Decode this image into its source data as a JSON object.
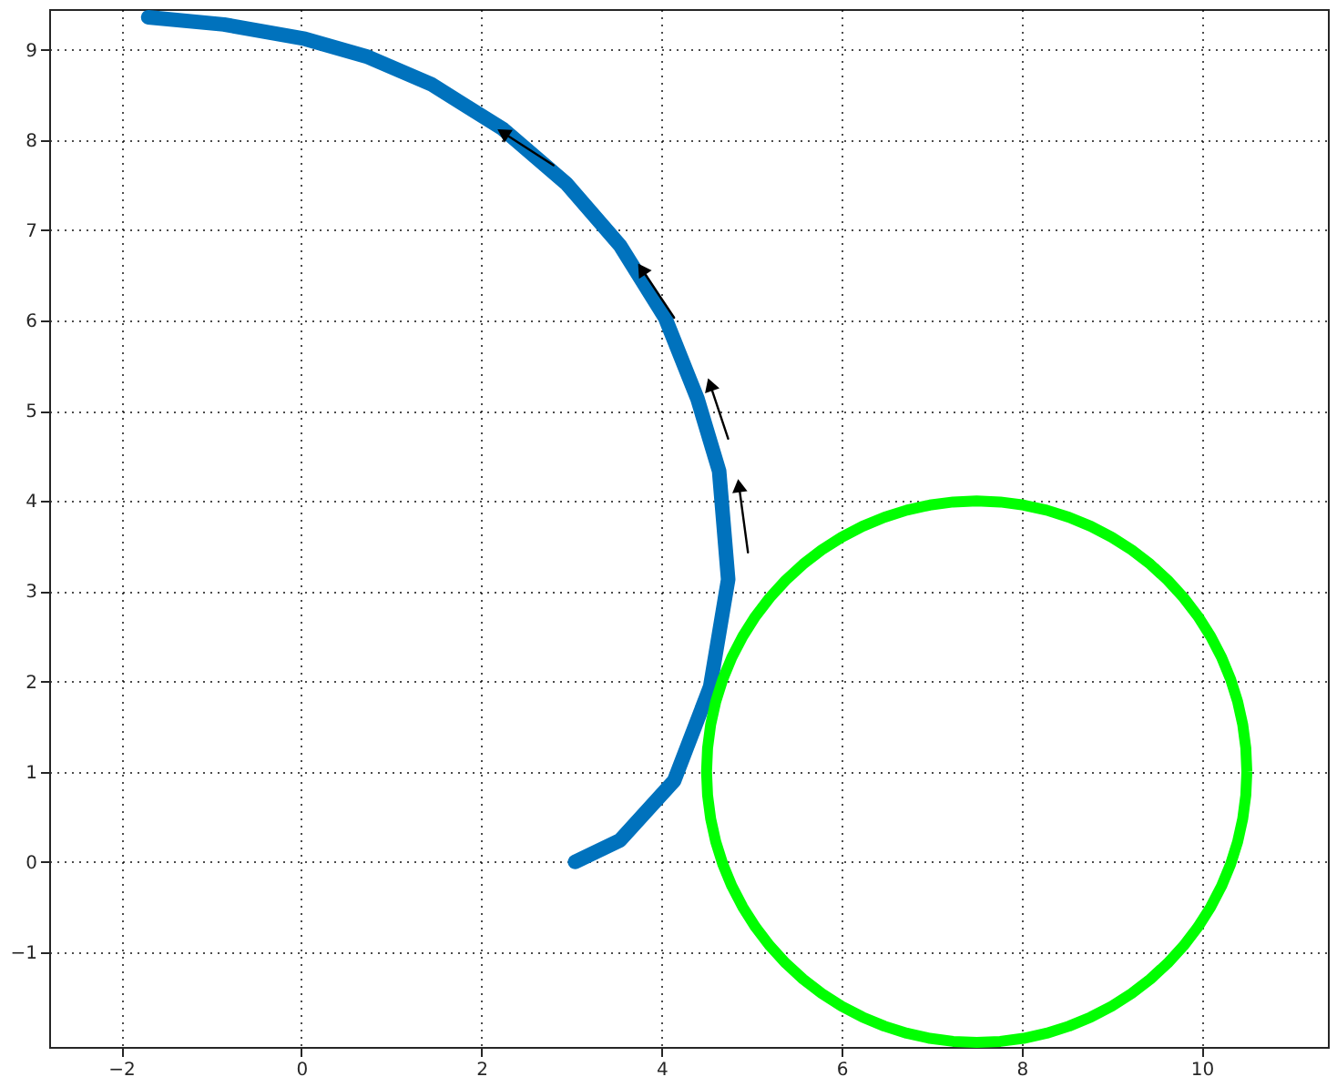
{
  "chart_data": {
    "type": "line",
    "xlim": [
      -2.8,
      11.4
    ],
    "ylim": [
      -2.05,
      9.45
    ],
    "xticks": [
      -2,
      0,
      2,
      4,
      6,
      8,
      10
    ],
    "yticks": [
      -1,
      0,
      1,
      2,
      3,
      4,
      5,
      6,
      7,
      8,
      9
    ],
    "grid": true,
    "line_style": "solid",
    "series": [
      {
        "color": "#0072bd",
        "x": [
          3.04,
          3.54,
          4.14,
          4.54,
          4.74,
          4.64,
          4.4,
          4.04,
          3.54,
          2.94,
          2.24,
          1.44,
          0.74,
          0.04,
          -0.86,
          -1.7
        ],
        "values": [
          0,
          0.24,
          0.9,
          1.94,
          3.13,
          4.33,
          5.13,
          6.03,
          6.83,
          7.52,
          8.12,
          8.62,
          8.92,
          9.12,
          9.28,
          9.36
        ]
      },
      {
        "color": "#000000",
        "marker": "triangle",
        "x": [
          2.8,
          2.24
        ],
        "values": [
          7.72,
          8.08
        ]
      },
      {
        "color": "#000000",
        "marker": "triangle",
        "x": [
          4.14,
          3.78
        ],
        "values": [
          6.03,
          6.57
        ]
      },
      {
        "color": "#000000",
        "marker": "triangle",
        "x": [
          4.74,
          4.54
        ],
        "values": [
          4.69,
          5.29
        ]
      },
      {
        "color": "#000000",
        "marker": "triangle",
        "x": [
          4.96,
          4.86
        ],
        "values": [
          3.43,
          4.17
        ]
      }
    ]
  }
}
